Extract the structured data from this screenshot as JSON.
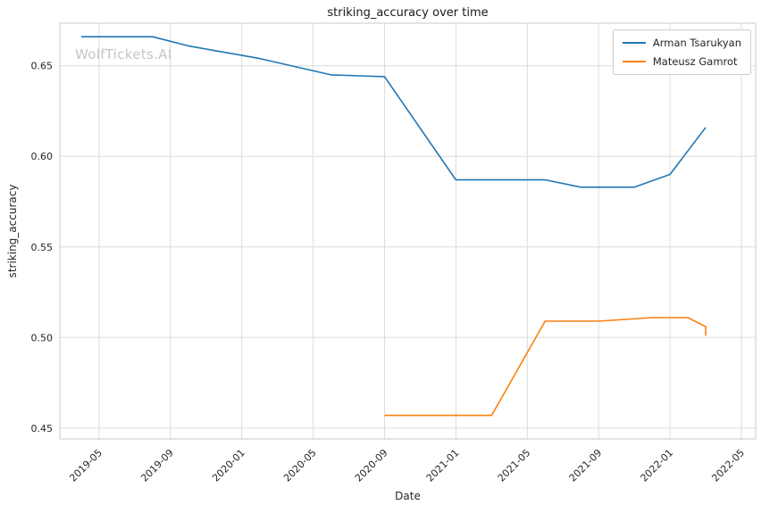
{
  "figure": {
    "watermark": "WolfTickets.AI"
  },
  "chart_data": {
    "type": "line",
    "title": "striking_accuracy over time",
    "xlabel": "Date",
    "ylabel": "striking_accuracy",
    "x_tick_labels": [
      "2019-05",
      "2019-09",
      "2020-01",
      "2020-05",
      "2020-09",
      "2021-01",
      "2021-05",
      "2021-09",
      "2022-01",
      "2022-05"
    ],
    "y_ticks": [
      0.45,
      0.5,
      0.55,
      0.6,
      0.65
    ],
    "xlim_decimal_years": [
      2019.15,
      2022.4
    ],
    "ylim": [
      0.444,
      0.6735
    ],
    "grid": true,
    "legend_position": "upper right",
    "colors": {
      "arman": "#1f77b4",
      "mateusz": "#ff7f0e",
      "grid": "#dcdcdc",
      "spine": "#c8c8c8"
    },
    "series": [
      {
        "name": "Arman Tsarukyan",
        "color": "#1f77b4",
        "points": [
          [
            "2019-04",
            0.666
          ],
          [
            "2019-08",
            0.666
          ],
          [
            "2019-10",
            0.661
          ],
          [
            "2020-02",
            0.654
          ],
          [
            "2020-06",
            0.645
          ],
          [
            "2020-09",
            0.644
          ],
          [
            "2021-01",
            0.587
          ],
          [
            "2021-06",
            0.587
          ],
          [
            "2021-08",
            0.583
          ],
          [
            "2021-11",
            0.583
          ],
          [
            "2022-01",
            0.59
          ],
          [
            "2022-03",
            0.616
          ]
        ]
      },
      {
        "name": "Mateusz Gamrot",
        "color": "#ff7f0e",
        "points": [
          [
            "2020-09",
            0.457
          ],
          [
            "2021-03",
            0.457
          ],
          [
            "2021-06",
            0.509
          ],
          [
            "2021-09",
            0.509
          ],
          [
            "2021-12",
            0.511
          ],
          [
            "2022-02",
            0.511
          ],
          [
            "2022-03",
            0.506
          ],
          [
            "2022-03",
            0.501
          ]
        ]
      }
    ]
  }
}
